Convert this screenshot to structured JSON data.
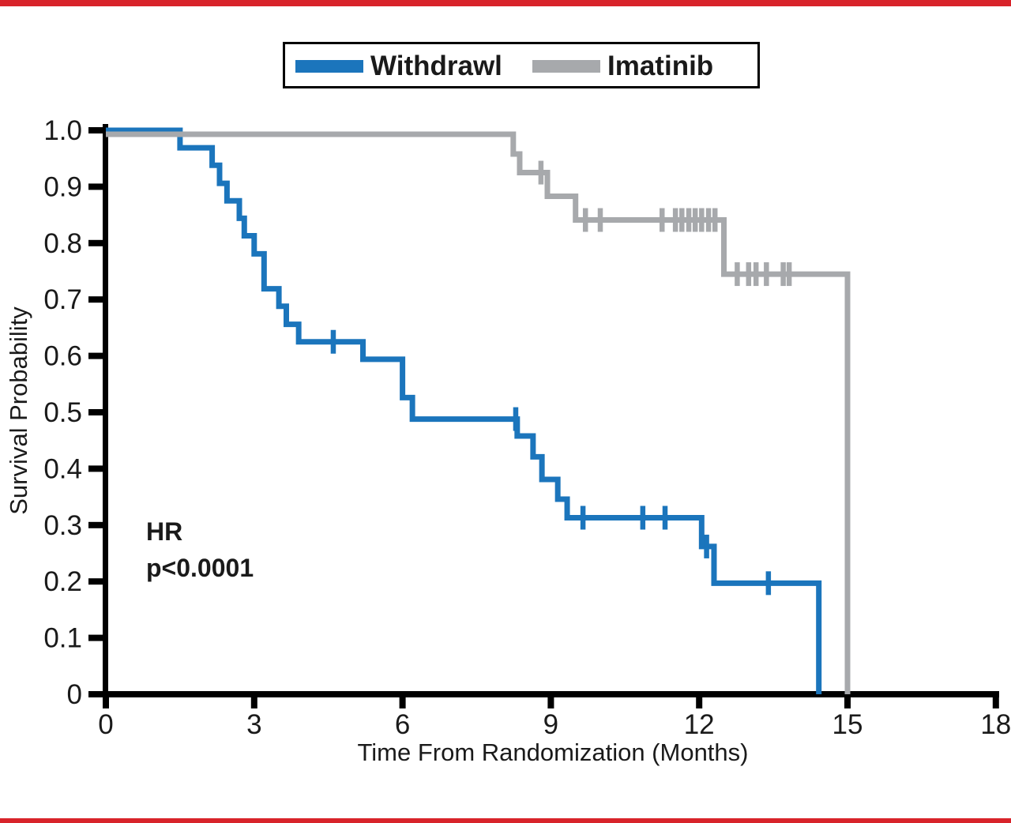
{
  "page": {
    "background": "#ffffff",
    "top_rule_color": "#d8232a",
    "bottom_rule_color": "#d8232a"
  },
  "annotation": {
    "line1": "HR",
    "line2": "p<0.0001"
  },
  "chart_data": {
    "type": "line",
    "subtype": "kaplan-meier-step",
    "title": "",
    "xlabel": "Time From Randomization (Months)",
    "ylabel": "Survival Probability",
    "xlim": [
      0,
      18
    ],
    "ylim": [
      0,
      1.0
    ],
    "grid": false,
    "axis_color": "#000000",
    "x_ticks": [
      0,
      3,
      6,
      9,
      12,
      15,
      18
    ],
    "x_tick_labels": [
      "0",
      "3",
      "6",
      "9",
      "12",
      "15",
      "18"
    ],
    "y_ticks": [
      1.0,
      0.9,
      0.8,
      0.7,
      0.6,
      0.5,
      0.4,
      0.3,
      0.2,
      0.1,
      0
    ],
    "y_tick_labels": [
      "1.0",
      "0.9",
      "0.8",
      "0.7",
      "0.6",
      "0.5",
      "0.4",
      "0.3",
      "0.2",
      "0.1",
      "0"
    ],
    "legend": {
      "position": "top-center",
      "entries": [
        {
          "label": "Withdrawl",
          "color": "#1b75bc"
        },
        {
          "label": "Imatinib",
          "color": "#a7a9ac"
        }
      ]
    },
    "series": [
      {
        "name": "Withdrawl",
        "color": "#1b75bc",
        "steps": [
          [
            0,
            1.0
          ],
          [
            1.5,
            0.969
          ],
          [
            2.15,
            0.938
          ],
          [
            2.3,
            0.906
          ],
          [
            2.45,
            0.875
          ],
          [
            2.7,
            0.844
          ],
          [
            2.8,
            0.813
          ],
          [
            3.0,
            0.781
          ],
          [
            3.2,
            0.719
          ],
          [
            3.5,
            0.688
          ],
          [
            3.65,
            0.656
          ],
          [
            3.9,
            0.625
          ],
          [
            5.2,
            0.594
          ],
          [
            6.0,
            0.526
          ],
          [
            6.2,
            0.488
          ],
          [
            8.32,
            0.458
          ],
          [
            8.64,
            0.421
          ],
          [
            8.82,
            0.381
          ],
          [
            9.14,
            0.346
          ],
          [
            9.33,
            0.313
          ],
          [
            12.05,
            0.262
          ],
          [
            12.3,
            0.197
          ],
          [
            14.42,
            0.0
          ]
        ],
        "censors": [
          [
            4.6,
            0.625
          ],
          [
            8.29,
            0.488
          ],
          [
            9.65,
            0.313
          ],
          [
            10.86,
            0.313
          ],
          [
            11.31,
            0.313
          ],
          [
            12.15,
            0.262
          ],
          [
            13.4,
            0.197
          ]
        ]
      },
      {
        "name": "Imatinib",
        "color": "#a7a9ac",
        "steps": [
          [
            0,
            0.993
          ],
          [
            8.24,
            0.958
          ],
          [
            8.37,
            0.925
          ],
          [
            8.93,
            0.883
          ],
          [
            9.5,
            0.841
          ],
          [
            12.5,
            0.745
          ],
          [
            15.0,
            0.0
          ]
        ],
        "censors": [
          [
            8.8,
            0.925
          ],
          [
            9.7,
            0.841
          ],
          [
            10.0,
            0.841
          ],
          [
            11.25,
            0.841
          ],
          [
            11.52,
            0.841
          ],
          [
            11.65,
            0.841
          ],
          [
            11.79,
            0.841
          ],
          [
            11.92,
            0.841
          ],
          [
            12.05,
            0.841
          ],
          [
            12.19,
            0.841
          ],
          [
            12.32,
            0.841
          ],
          [
            12.77,
            0.745
          ],
          [
            13.0,
            0.745
          ],
          [
            13.15,
            0.745
          ],
          [
            13.36,
            0.745
          ],
          [
            13.7,
            0.745
          ],
          [
            13.82,
            0.745
          ]
        ]
      }
    ]
  }
}
